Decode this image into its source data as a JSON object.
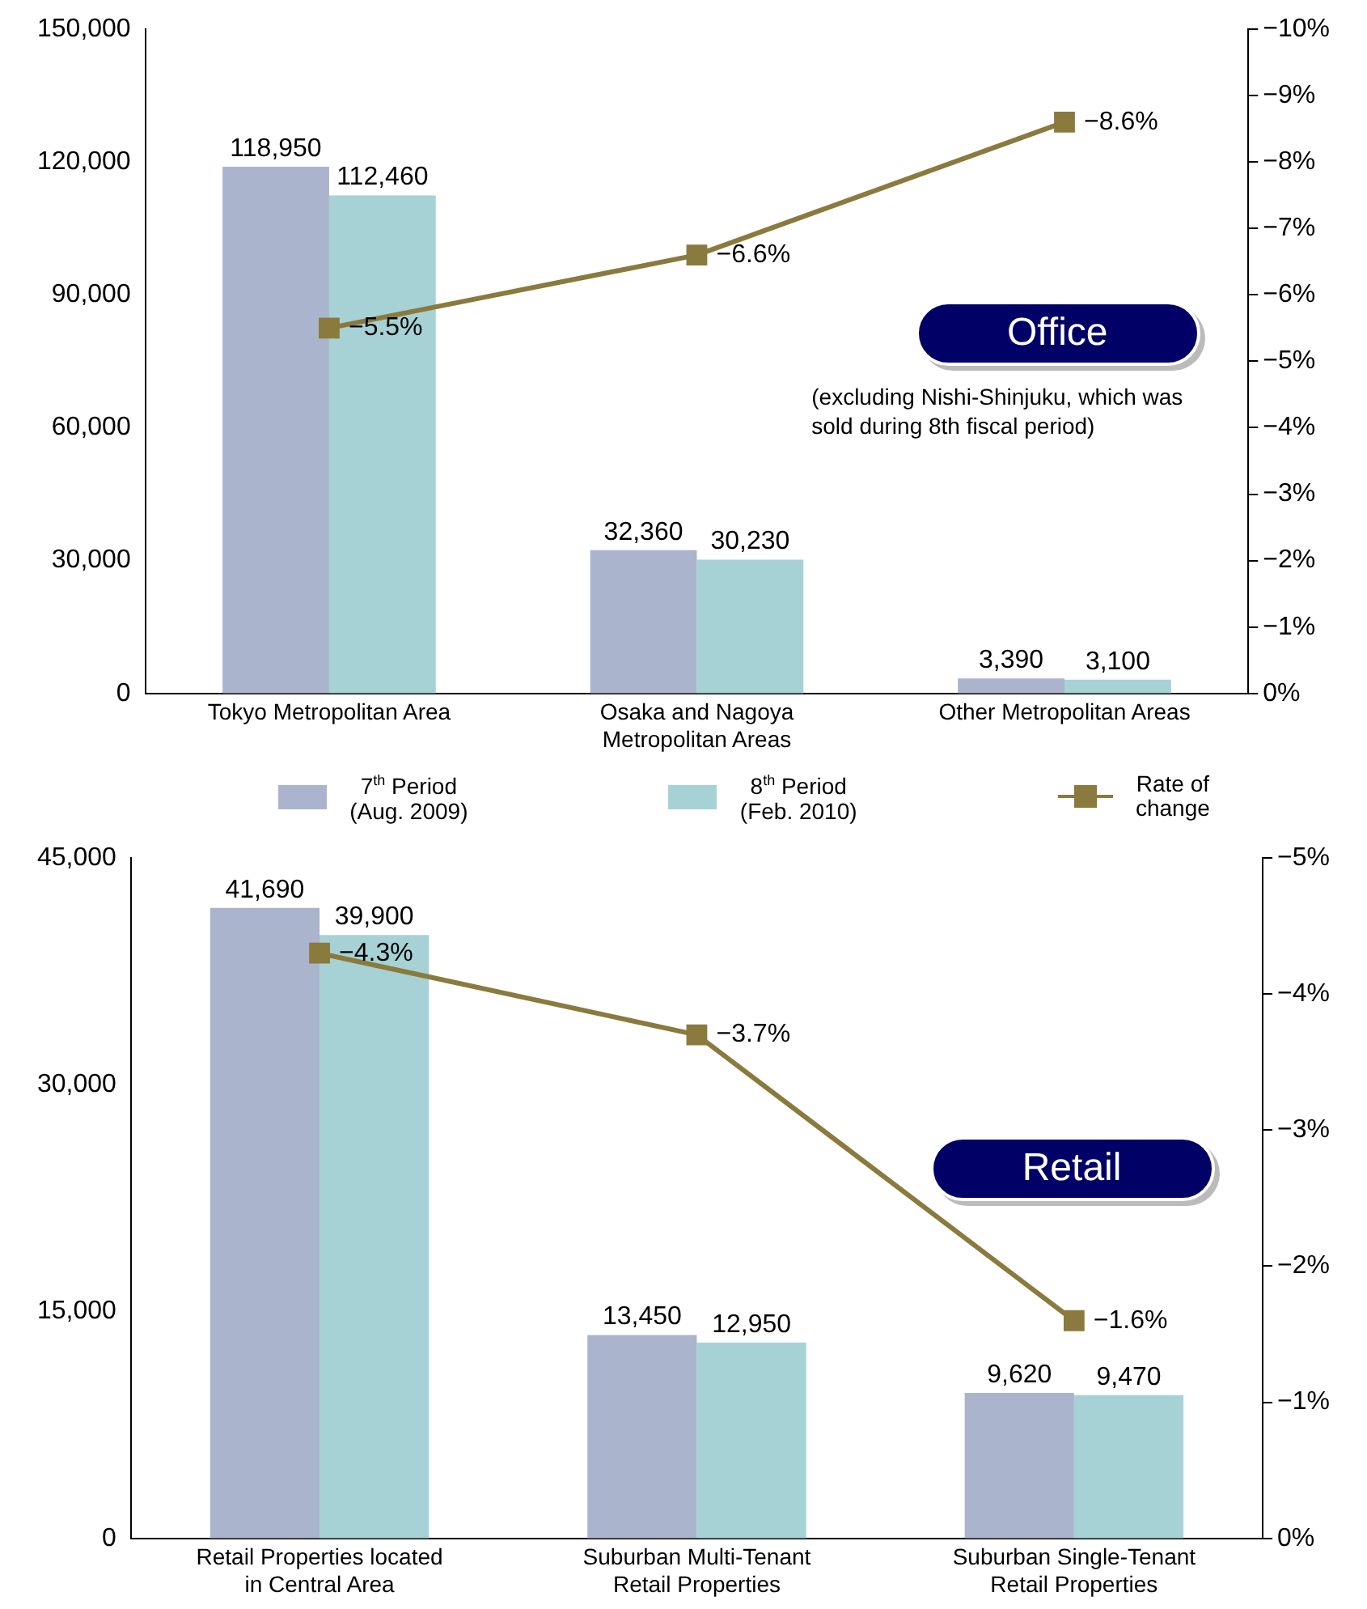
{
  "chart_data": [
    {
      "type": "bar",
      "categories": [
        "Tokyo Metropolitan Area",
        "Osaka and Nagoya\nMetropolitan Areas",
        "Other Metropolitan Areas"
      ],
      "series": [
        {
          "name": "7$^{th}$ Period\n(Aug. 2009)",
          "color": "#aab4cc",
          "values": [
            118950,
            32360,
            3390
          ],
          "value_labels": [
            "118,950",
            "32,360",
            "3,390"
          ]
        },
        {
          "name": "8$^{th}$ Period\n(Feb. 2010)",
          "color": "#a6d2d6",
          "values": [
            112460,
            30230,
            3100
          ],
          "value_labels": [
            "112,460",
            "30,230",
            "3,100"
          ]
        },
        {
          "name": "Rate of\nchange",
          "type": "line",
          "axis": "y2",
          "color": "#8b7a3e",
          "marker": "square",
          "values": [
            -5.5,
            -6.6,
            -8.6
          ],
          "value_labels": [
            "−5.5%",
            "−6.6%",
            "−8.6%"
          ]
        }
      ],
      "ylim": [
        0,
        150000
      ],
      "yticks": [
        0,
        {
          "value": 30000,
          "label": "30,000"
        },
        {
          "value": 60000,
          "label": "60,000"
        },
        {
          "value": 90000,
          "label": "90,000"
        },
        {
          "value": 120000,
          "label": "120,000"
        },
        {
          "value": 150000,
          "label": "150,000"
        }
      ],
      "y2lim": [
        0,
        -10
      ],
      "y2ticks": [
        {
          "value": 0,
          "label": "0%"
        },
        {
          "value": -1,
          "label": "−1%"
        },
        {
          "value": -2,
          "label": "−2%"
        },
        {
          "value": -3,
          "label": "−3%"
        },
        {
          "value": -4,
          "label": "−4%"
        },
        {
          "value": -5,
          "label": "−5%"
        },
        {
          "value": -6,
          "label": "−6%"
        },
        {
          "value": -7,
          "label": "−7%"
        },
        {
          "value": -8,
          "label": "−8%"
        },
        {
          "value": -9,
          "label": "−9%"
        },
        {
          "value": -10,
          "label": "−10%"
        }
      ],
      "annotations": [
        "Office",
        "(excluding Nishi-Shinjuku, which was sold during 8th fiscal period)"
      ],
      "grid": false,
      "legend": "bottom"
    },
    {
      "type": "bar",
      "categories": [
        "Retail Properties located\nin Central Area",
        "Suburban Multi-Tenant\nRetail Properties",
        "Suburban Single-Tenant\nRetail Properties"
      ],
      "series": [
        {
          "name": "7$^{th}$ Period\n(Aug. 2009)",
          "color": "#aab4cc",
          "values": [
            41690,
            13450,
            9620
          ],
          "value_labels": [
            "41,690",
            "13,450",
            "9,620"
          ]
        },
        {
          "name": "8$^{th}$ Period\n(Feb. 2010)",
          "color": "#a6d2d6",
          "values": [
            39900,
            12950,
            9470
          ],
          "value_labels": [
            "39,900",
            "12,950",
            "9,470"
          ]
        },
        {
          "name": "Rate of\nchange",
          "type": "line",
          "axis": "y2",
          "color": "#8b7a3e",
          "marker": "square",
          "values": [
            -4.3,
            -3.7,
            -1.6
          ],
          "value_labels": [
            "−4.3%",
            "−3.7%",
            "−1.6%"
          ]
        }
      ],
      "ylim": [
        0,
        45000
      ],
      "yticks": [
        0,
        {
          "value": 15000,
          "label": "15,000"
        },
        {
          "value": 30000,
          "label": "30,000"
        },
        {
          "value": 45000,
          "label": "45,000"
        }
      ],
      "y2lim": [
        0,
        -5
      ],
      "y2ticks": [
        {
          "value": 0,
          "label": "0%"
        },
        {
          "value": -1,
          "label": "−1%"
        },
        {
          "value": -2,
          "label": "−2%"
        },
        {
          "value": -3,
          "label": "−3%"
        },
        {
          "value": -4,
          "label": "−4%"
        },
        {
          "value": -5,
          "label": "−5%"
        }
      ],
      "annotations": [
        "Retail"
      ],
      "grid": false,
      "legend": false
    }
  ]
}
